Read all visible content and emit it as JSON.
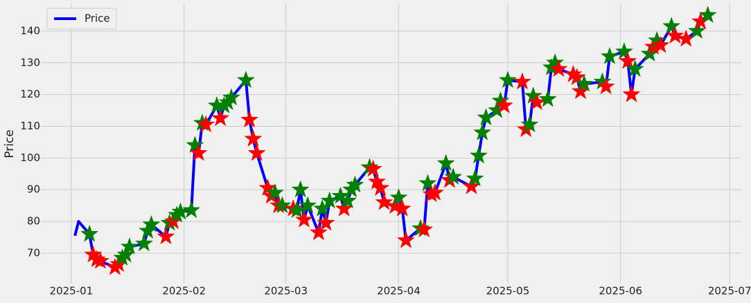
{
  "chart_data": {
    "type": "line",
    "ylabel": "Price",
    "x": [
      1,
      2,
      5,
      6,
      7,
      8,
      12,
      13,
      14,
      15,
      16,
      20,
      21,
      22,
      26,
      27,
      28,
      29,
      30,
      33,
      34,
      35,
      36,
      37,
      40,
      41,
      42,
      43,
      44,
      48,
      49,
      50,
      51,
      54,
      55,
      56,
      57,
      58,
      61,
      62,
      63,
      64,
      65,
      68,
      69,
      70,
      71,
      74,
      75,
      76,
      77,
      78,
      82,
      83,
      84,
      85,
      86,
      89,
      90,
      91,
      92,
      96,
      97,
      98,
      99,
      100,
      103,
      104,
      105,
      110,
      111,
      112,
      113,
      114,
      117,
      118,
      119,
      120,
      124,
      125,
      126,
      127,
      128,
      131,
      132,
      133,
      134,
      138,
      139,
      140,
      141,
      146,
      147,
      148,
      152,
      153,
      154,
      155,
      159,
      160,
      161,
      162,
      165,
      166,
      169,
      172,
      173,
      175
    ],
    "series": [
      {
        "name": "Price",
        "color": "#0000ff",
        "values": [
          75.5,
          80,
          76,
          69.5,
          68,
          67.5,
          65.5,
          66.5,
          68.5,
          69.5,
          72,
          73,
          77,
          79,
          75.2,
          79.5,
          80,
          82,
          83,
          83.5,
          104,
          101.5,
          111,
          110.5,
          116.5,
          112.5,
          116.5,
          117.5,
          119,
          124.5,
          112,
          106,
          101.5,
          90.5,
          88,
          89,
          85,
          85,
          84,
          83.5,
          90,
          80.5,
          85,
          76.5,
          84,
          79.5,
          86.5,
          88,
          84,
          86.5,
          90,
          91.5,
          97,
          96.5,
          92.5,
          90.5,
          86,
          84.8,
          87.5,
          84,
          74,
          77.8,
          77.4,
          92,
          88.5,
          89,
          98.3,
          93,
          94,
          91,
          93.5,
          100.7,
          108,
          112.7,
          115,
          118,
          116.5,
          124.5,
          124,
          109,
          110.5,
          119.5,
          117.5,
          118.5,
          128.5,
          130,
          128,
          126.3,
          125.4,
          121,
          123.3,
          124,
          122.5,
          132,
          133.5,
          130.5,
          120,
          128,
          132.8,
          135,
          137,
          135.5,
          141.5,
          138.5,
          137.5,
          140,
          143,
          145
        ],
        "marker_colors": [
          null,
          null,
          "green",
          "red",
          "red",
          "red",
          "red",
          "red",
          "green",
          "green",
          "green",
          "green",
          "green",
          "green",
          "red",
          "green",
          "red",
          "green",
          "green",
          "green",
          "green",
          "red",
          "green",
          "red",
          "green",
          "red",
          "green",
          "green",
          "green",
          "green",
          "red",
          "red",
          "red",
          "red",
          "red",
          "green",
          "red",
          "green",
          "red",
          "green",
          "green",
          "red",
          "green",
          "red",
          "green",
          "red",
          "green",
          "green",
          "red",
          "green",
          "green",
          "green",
          "green",
          "red",
          "red",
          "red",
          "red",
          "red",
          "green",
          "red",
          "red",
          "green",
          "red",
          "green",
          "red",
          "red",
          "green",
          "red",
          "green",
          "red",
          "green",
          "green",
          "green",
          "green",
          "green",
          "green",
          "red",
          "green",
          "red",
          "red",
          "green",
          "green",
          "red",
          "green",
          "green",
          "green",
          "red",
          "red",
          "red",
          "red",
          "green",
          "green",
          "red",
          "green",
          "green",
          "red",
          "red",
          "green",
          "green",
          "red",
          "green",
          "red",
          "green",
          "red",
          "red",
          "green",
          "red",
          "green"
        ]
      }
    ],
    "xlim": [
      -11.6,
      184.2
    ],
    "xticks": [
      {
        "value": 0,
        "label": "2025-01"
      },
      {
        "value": 31,
        "label": "2025-02"
      },
      {
        "value": 59,
        "label": "2025-03"
      },
      {
        "value": 90,
        "label": "2025-04"
      },
      {
        "value": 120,
        "label": "2025-05"
      },
      {
        "value": 151,
        "label": "2025-06"
      },
      {
        "value": 181,
        "label": "2025-07"
      }
    ],
    "ylim": [
      60.4,
      148.7
    ],
    "yticks": [
      70,
      80,
      90,
      100,
      110,
      120,
      130,
      140
    ],
    "grid": true,
    "legend": "upper left"
  }
}
